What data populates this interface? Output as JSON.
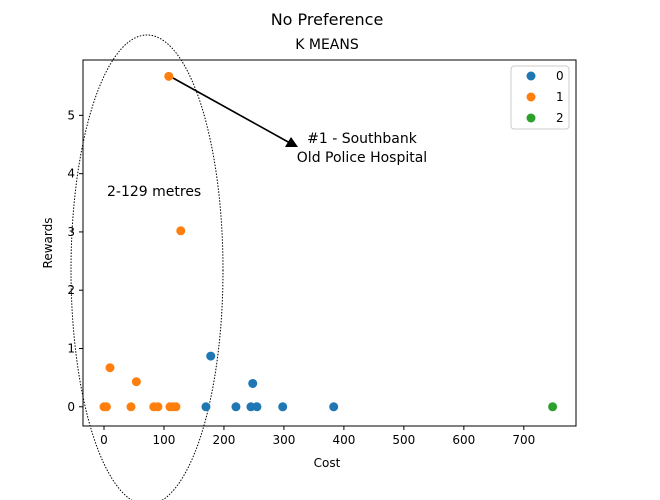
{
  "figure": {
    "suptitle": "No Preference"
  },
  "chart_data": {
    "type": "scatter",
    "title": "K MEANS",
    "xlabel": "Cost",
    "ylabel": "Rewards",
    "xlim": [
      -35,
      787
    ],
    "ylim": [
      -0.33,
      5.95
    ],
    "xticks": [
      0,
      100,
      200,
      300,
      400,
      500,
      600,
      700
    ],
    "yticks": [
      0,
      1,
      2,
      3,
      4,
      5
    ],
    "grid": false,
    "legend_position": "top-right",
    "series": [
      {
        "name": "0",
        "color": "#1f77b4",
        "points": [
          {
            "x": 178,
            "y": 0.87
          },
          {
            "x": 248,
            "y": 0.4
          },
          {
            "x": 170,
            "y": 0.0
          },
          {
            "x": 220,
            "y": 0.0
          },
          {
            "x": 245,
            "y": 0.0
          },
          {
            "x": 255,
            "y": 0.0
          },
          {
            "x": 298,
            "y": 0.0
          },
          {
            "x": 383,
            "y": 0.0
          }
        ]
      },
      {
        "name": "1",
        "color": "#ff7f0e",
        "points": [
          {
            "x": 108,
            "y": 5.67
          },
          {
            "x": 128,
            "y": 3.02
          },
          {
            "x": 10,
            "y": 0.67
          },
          {
            "x": 54,
            "y": 0.43
          },
          {
            "x": 0,
            "y": 0.0
          },
          {
            "x": 4,
            "y": 0.0
          },
          {
            "x": 45,
            "y": 0.0
          },
          {
            "x": 83,
            "y": 0.0
          },
          {
            "x": 90,
            "y": 0.0
          },
          {
            "x": 110,
            "y": 0.0
          },
          {
            "x": 115,
            "y": 0.0
          },
          {
            "x": 120,
            "y": 0.0
          }
        ]
      },
      {
        "name": "2",
        "color": "#2ca02c",
        "points": [
          {
            "x": 748,
            "y": 0.0
          }
        ]
      }
    ],
    "annotations": {
      "range_label": "2-129 metres",
      "callout_line1": "#1 - Southbank",
      "callout_line2": "Old Police Hospital"
    }
  }
}
